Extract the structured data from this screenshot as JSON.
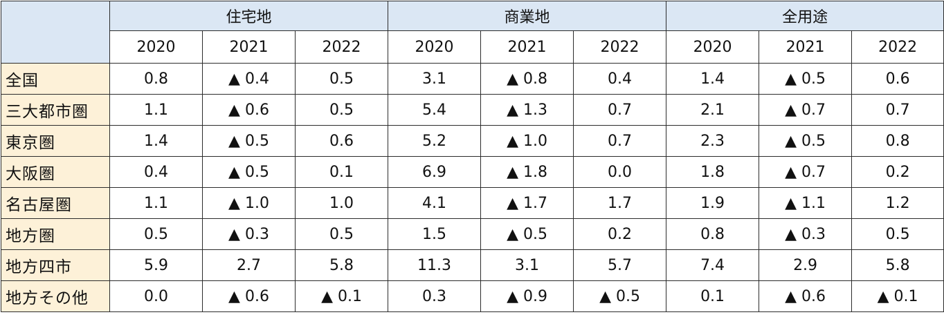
{
  "table": {
    "groups": [
      "住宅地",
      "商業地",
      "全用途"
    ],
    "years": [
      "2020",
      "2021",
      "2022"
    ],
    "rows": [
      {
        "label": "全国",
        "values": [
          "0.8",
          "▲ 0.4",
          "0.5",
          "3.1",
          "▲ 0.8",
          "0.4",
          "1.4",
          "▲ 0.5",
          "0.6"
        ]
      },
      {
        "label": "三大都市圏",
        "values": [
          "1.1",
          "▲ 0.6",
          "0.5",
          "5.4",
          "▲ 1.3",
          "0.7",
          "2.1",
          "▲ 0.7",
          "0.7"
        ]
      },
      {
        "label": "東京圏",
        "values": [
          "1.4",
          "▲ 0.5",
          "0.6",
          "5.2",
          "▲ 1.0",
          "0.7",
          "2.3",
          "▲ 0.5",
          "0.8"
        ]
      },
      {
        "label": "大阪圏",
        "values": [
          "0.4",
          "▲ 0.5",
          "0.1",
          "6.9",
          "▲ 1.8",
          "0.0",
          "1.8",
          "▲ 0.7",
          "0.2"
        ]
      },
      {
        "label": "名古屋圏",
        "values": [
          "1.1",
          "▲ 1.0",
          "1.0",
          "4.1",
          "▲ 1.7",
          "1.7",
          "1.9",
          "▲ 1.1",
          "1.2"
        ]
      },
      {
        "label": "地方圏",
        "values": [
          "0.5",
          "▲ 0.3",
          "0.5",
          "1.5",
          "▲ 0.5",
          "0.2",
          "0.8",
          "▲ 0.3",
          "0.5"
        ]
      },
      {
        "label": "地方四市",
        "values": [
          "5.9",
          "2.7",
          "5.8",
          "11.3",
          "3.1",
          "5.7",
          "7.4",
          "2.9",
          "5.8"
        ]
      },
      {
        "label": "地方その他",
        "values": [
          "0.0",
          "▲ 0.6",
          "▲ 0.1",
          "0.3",
          "▲ 0.9",
          "▲ 0.5",
          "0.1",
          "▲ 0.6",
          "▲ 0.1"
        ]
      }
    ]
  },
  "colors": {
    "group_header_bg": "#dbe7f4",
    "row_label_bg": "#fdf1d8",
    "border": "#2b2b2b"
  }
}
